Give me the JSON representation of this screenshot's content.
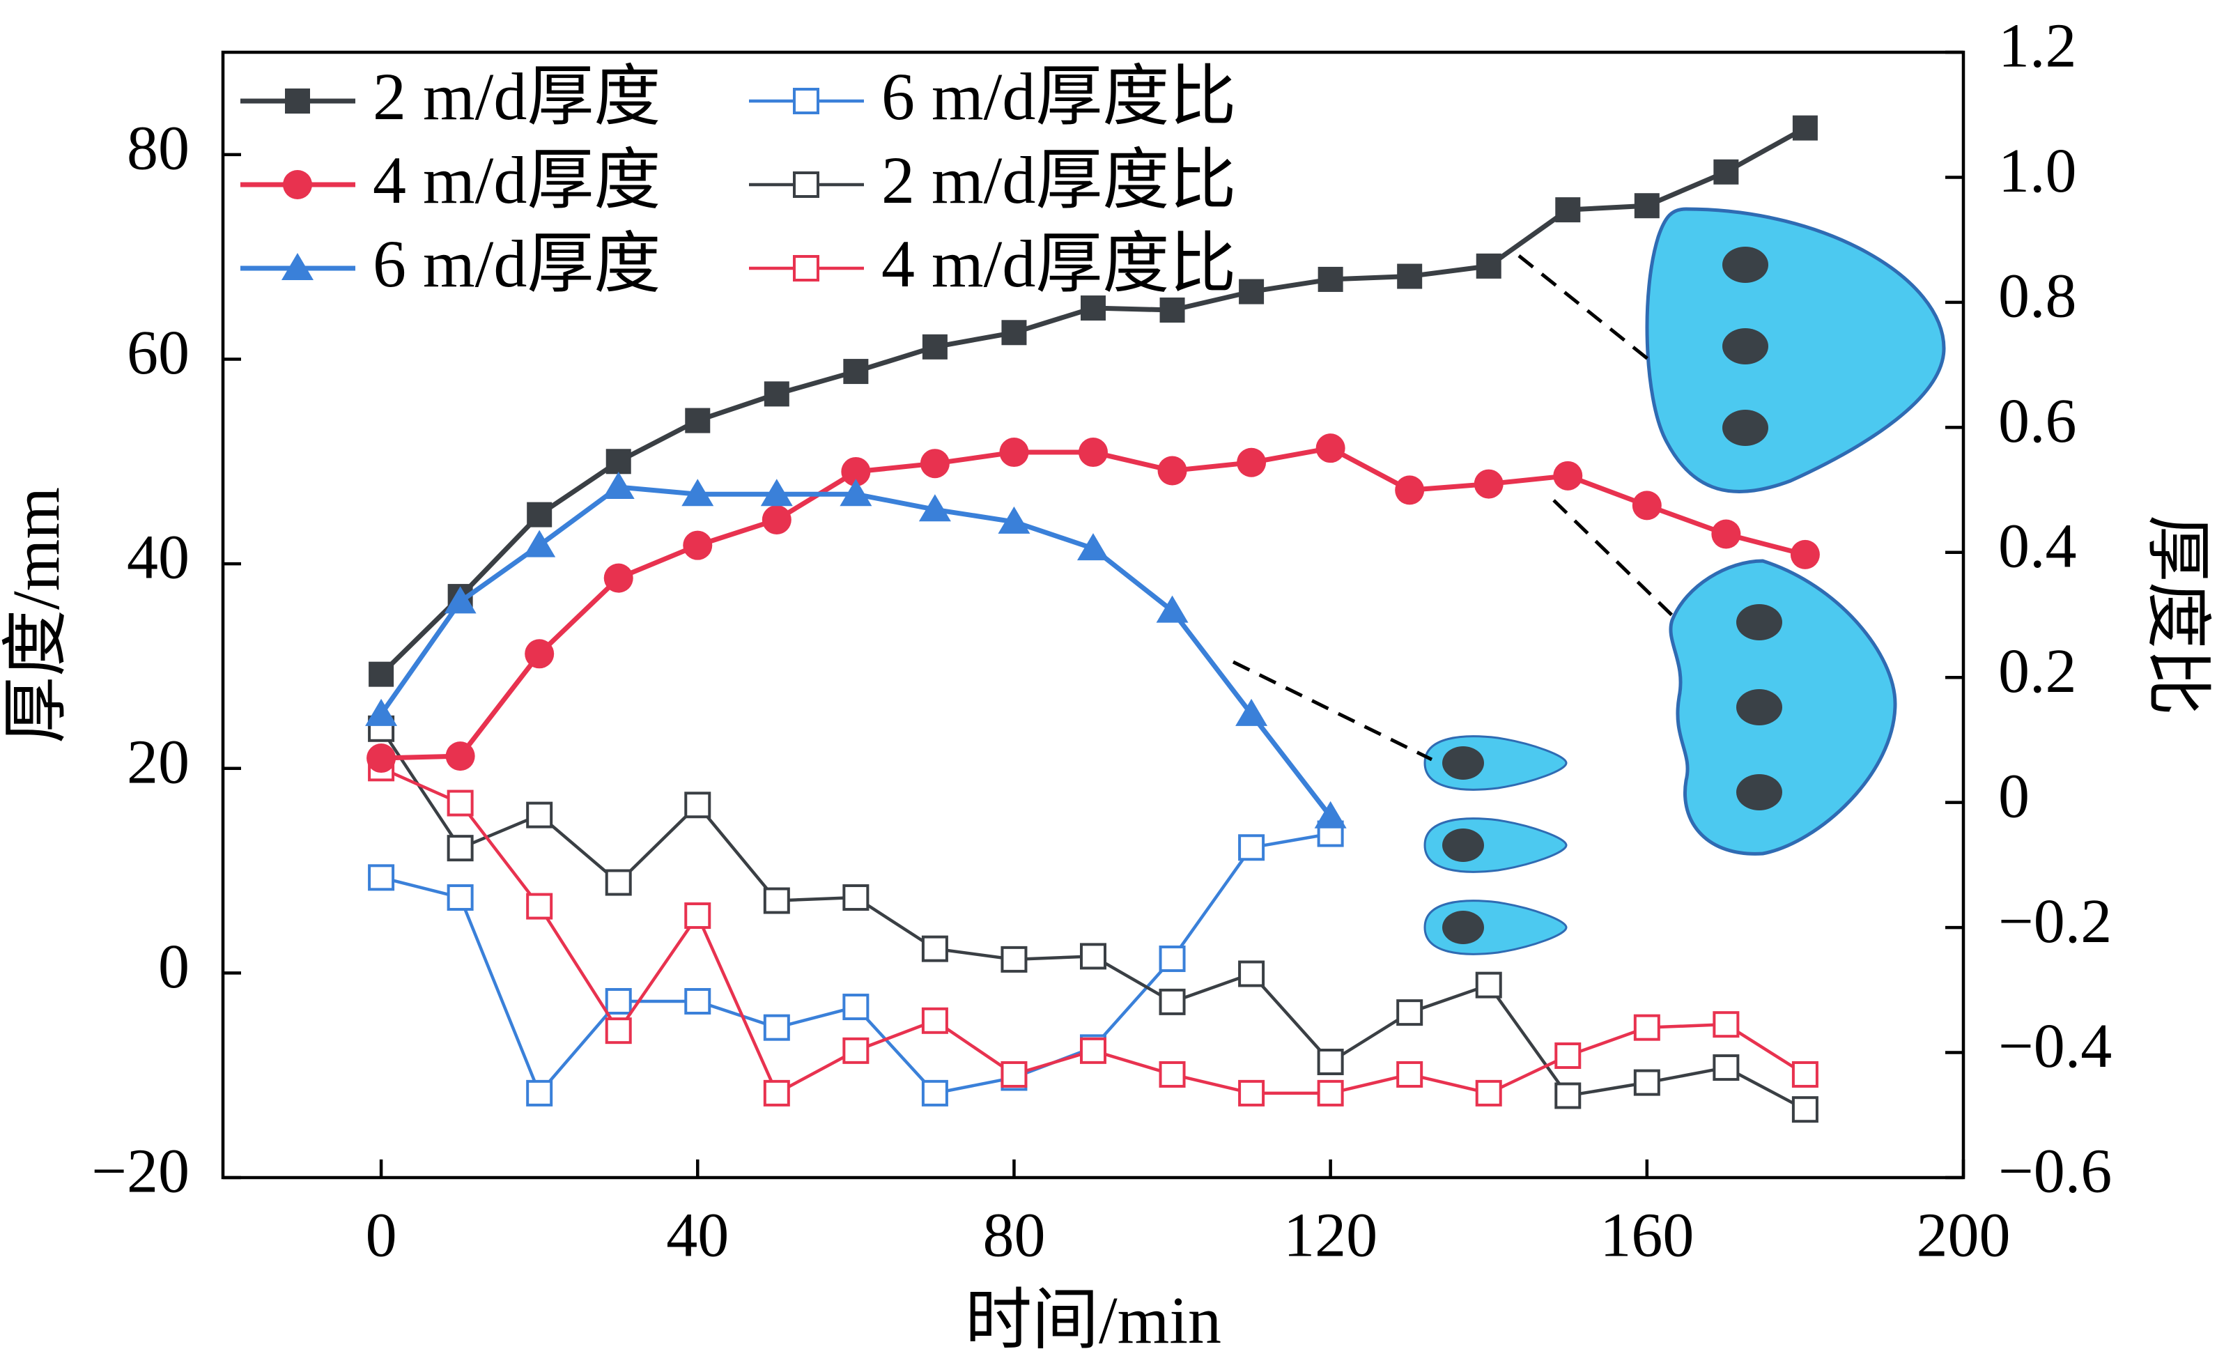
{
  "chart_data": {
    "type": "line",
    "x_axis": {
      "label": "时间/min",
      "range": [
        -20,
        200
      ],
      "ticks": [
        0,
        40,
        80,
        120,
        160,
        200
      ]
    },
    "y_left": {
      "label": "厚度/mm",
      "range": [
        -20,
        90
      ],
      "ticks": [
        -20,
        0,
        20,
        40,
        60,
        80
      ],
      "tick_labels": [
        "−20",
        "0",
        "20",
        "40",
        "60",
        "80"
      ]
    },
    "y_right": {
      "label": "厚度比",
      "range": [
        -0.6,
        1.2
      ],
      "ticks": [
        -0.6,
        -0.4,
        -0.2,
        0,
        0.2,
        0.4,
        0.6,
        0.8,
        1.0,
        1.2
      ],
      "tick_labels": [
        "−0.6",
        "−0.4",
        "−0.2",
        "0",
        "0.2",
        "0.4",
        "0.6",
        "0.8",
        "1.0",
        "1.2"
      ]
    },
    "grid": false,
    "legend_position": "top-left",
    "series": [
      {
        "name": "2 m/d厚度",
        "axis": "left",
        "marker": "square-filled",
        "color": "#3a3f44",
        "x": [
          0,
          10,
          20,
          30,
          40,
          50,
          60,
          70,
          80,
          90,
          100,
          110,
          120,
          130,
          140,
          150,
          160,
          170,
          180
        ],
        "y": [
          29.2,
          36.8,
          44.8,
          50.0,
          54.0,
          56.6,
          58.8,
          61.2,
          62.6,
          65.0,
          64.8,
          66.6,
          67.8,
          68.1,
          69.1,
          74.6,
          75.0,
          78.3,
          82.6
        ]
      },
      {
        "name": "4 m/d厚度",
        "axis": "left",
        "marker": "circle-filled",
        "color": "#e8324f",
        "x": [
          0,
          10,
          20,
          30,
          40,
          50,
          60,
          70,
          80,
          90,
          100,
          110,
          120,
          130,
          140,
          150,
          160,
          170,
          180
        ],
        "y": [
          21.0,
          21.2,
          31.2,
          38.6,
          41.8,
          44.3,
          49.0,
          49.8,
          50.9,
          50.9,
          49.1,
          49.9,
          51.3,
          47.2,
          47.8,
          48.6,
          45.7,
          42.9,
          40.9
        ]
      },
      {
        "name": "6 m/d厚度",
        "axis": "left",
        "marker": "triangle-filled",
        "color": "#3a80d9",
        "x": [
          0,
          10,
          20,
          30,
          40,
          50,
          60,
          70,
          80,
          90,
          100,
          110,
          120
        ],
        "y": [
          25.3,
          36.3,
          41.8,
          47.5,
          46.8,
          46.8,
          46.8,
          45.3,
          44.1,
          41.5,
          35.4,
          25.3,
          15.3
        ]
      },
      {
        "name": "6 m/d厚度比",
        "axis": "right",
        "marker": "square-open",
        "color": "#3a80d9",
        "x": [
          0,
          10,
          20,
          30,
          40,
          50,
          60,
          70,
          80,
          90,
          100,
          110,
          120
        ],
        "y": [
          -0.12,
          -0.152,
          -0.465,
          -0.318,
          -0.318,
          -0.36,
          -0.327,
          -0.465,
          -0.44,
          -0.392,
          -0.25,
          -0.072,
          -0.05
        ]
      },
      {
        "name": "2 m/d厚度比",
        "axis": "right",
        "marker": "square-open",
        "color": "#3a3f44",
        "x": [
          0,
          10,
          20,
          30,
          40,
          50,
          60,
          70,
          80,
          90,
          100,
          110,
          120,
          130,
          140,
          150,
          160,
          170,
          180
        ],
        "y": [
          0.118,
          -0.073,
          -0.02,
          -0.128,
          -0.004,
          -0.157,
          -0.152,
          -0.234,
          -0.251,
          -0.246,
          -0.319,
          -0.274,
          -0.415,
          -0.336,
          -0.292,
          -0.469,
          -0.448,
          -0.424,
          -0.491
        ]
      },
      {
        "name": "4 m/d厚度比",
        "axis": "right",
        "marker": "square-open",
        "color": "#e8324f",
        "x": [
          0,
          10,
          20,
          30,
          40,
          50,
          60,
          70,
          80,
          90,
          100,
          110,
          120,
          130,
          140,
          150,
          160,
          170,
          180
        ],
        "y": [
          0.055,
          -0.001,
          -0.166,
          -0.365,
          -0.181,
          -0.465,
          -0.397,
          -0.349,
          -0.435,
          -0.397,
          -0.435,
          -0.465,
          -0.465,
          -0.435,
          -0.465,
          -0.405,
          -0.36,
          -0.355,
          -0.435
        ]
      }
    ]
  },
  "colors": {
    "axis": "#000000",
    "shape_fill": "#4cc9f0",
    "shape_stroke": "#2f6bb3",
    "hole": "#3a4147"
  }
}
